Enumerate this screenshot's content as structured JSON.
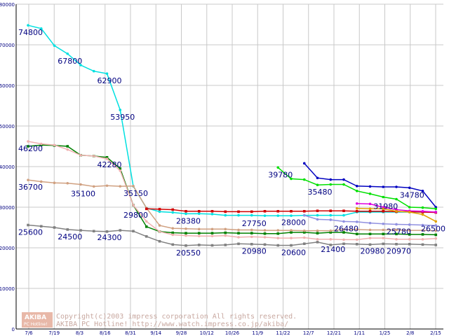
{
  "chart_data": {
    "type": "line",
    "title": "",
    "xlabel": "",
    "ylabel": "",
    "ylim": [
      0,
      80000
    ],
    "y_ticks": [
      0,
      10000,
      20000,
      30000,
      40000,
      50000,
      60000,
      70000,
      80000
    ],
    "x_tick_labels": [
      "7/6",
      "7/19",
      "8/3",
      "8/16",
      "8/31",
      "9/14",
      "9/28",
      "10/12",
      "10/26",
      "11/9",
      "11/22",
      "12/7",
      "12/21",
      "1/11",
      "1/25",
      "2/8",
      "2/15"
    ],
    "grid": true,
    "legend": "none",
    "series": [
      {
        "color": "#00e0e0",
        "marker": "dot",
        "values": [
          [
            0,
            74800
          ],
          [
            1,
            74000
          ],
          [
            2,
            69800
          ],
          [
            3,
            67800
          ],
          [
            4,
            65000
          ],
          [
            5,
            63500
          ],
          [
            6,
            62900
          ],
          [
            7,
            53950
          ],
          [
            8,
            35150
          ],
          [
            9,
            29800
          ],
          [
            10,
            28900
          ],
          [
            11,
            28700
          ],
          [
            12,
            28380
          ],
          [
            13,
            28400
          ],
          [
            14,
            28300
          ],
          [
            15,
            28000
          ],
          [
            16,
            28000
          ],
          [
            17,
            28000
          ],
          [
            18,
            27900
          ],
          [
            19,
            27900
          ],
          [
            20,
            27900
          ],
          [
            21,
            28000
          ],
          [
            22,
            28000
          ],
          [
            23,
            28000
          ],
          [
            24,
            28000
          ],
          [
            25,
            28800
          ],
          [
            26,
            28800
          ],
          [
            27,
            28800
          ],
          [
            28,
            28800
          ],
          [
            29,
            28800
          ],
          [
            30,
            28800
          ],
          [
            31,
            28800
          ]
        ]
      },
      {
        "color": "#008000",
        "marker": "square",
        "values": [
          [
            0,
            45000
          ],
          [
            1,
            45300
          ],
          [
            2,
            45200
          ],
          [
            3,
            45000
          ],
          [
            4,
            42800
          ],
          [
            5,
            42600
          ],
          [
            6,
            42280
          ],
          [
            7,
            39500
          ],
          [
            8,
            30500
          ],
          [
            9,
            25200
          ],
          [
            10,
            24000
          ],
          [
            11,
            23700
          ],
          [
            12,
            23600
          ],
          [
            13,
            23600
          ],
          [
            14,
            23600
          ],
          [
            15,
            23700
          ],
          [
            16,
            23600
          ],
          [
            17,
            23600
          ],
          [
            18,
            23500
          ],
          [
            19,
            23500
          ],
          [
            20,
            23800
          ],
          [
            21,
            23800
          ],
          [
            22,
            23600
          ],
          [
            23,
            23800
          ],
          [
            24,
            23800
          ],
          [
            25,
            23400
          ],
          [
            26,
            23400
          ],
          [
            27,
            23400
          ],
          [
            28,
            23400
          ],
          [
            29,
            23300
          ],
          [
            30,
            23300
          ],
          [
            31,
            23200
          ]
        ]
      },
      {
        "color": "#f0b0b0",
        "marker": "dot",
        "values": [
          [
            0,
            46200
          ],
          [
            1,
            45600
          ],
          [
            2,
            45300
          ],
          [
            3,
            44200
          ],
          [
            4,
            42800
          ],
          [
            5,
            42600
          ],
          [
            6,
            41900
          ],
          [
            7,
            39000
          ],
          [
            8,
            30500
          ],
          [
            9,
            26500
          ],
          [
            10,
            24000
          ],
          [
            11,
            23200
          ],
          [
            12,
            23000
          ],
          [
            13,
            22900
          ],
          [
            14,
            22900
          ],
          [
            15,
            23000
          ],
          [
            16,
            22600
          ],
          [
            17,
            22700
          ],
          [
            18,
            22600
          ],
          [
            19,
            22400
          ],
          [
            20,
            22400
          ],
          [
            21,
            22500
          ],
          [
            22,
            22100
          ],
          [
            23,
            22100
          ],
          [
            24,
            22000
          ],
          [
            25,
            22000
          ],
          [
            26,
            22400
          ],
          [
            27,
            22400
          ],
          [
            28,
            22100
          ],
          [
            29,
            22100
          ],
          [
            30,
            22100
          ],
          [
            31,
            22300
          ]
        ]
      },
      {
        "color": "#d0a080",
        "marker": "dot",
        "values": [
          [
            0,
            36700
          ],
          [
            1,
            36300
          ],
          [
            2,
            36000
          ],
          [
            3,
            35900
          ],
          [
            4,
            35600
          ],
          [
            5,
            35100
          ],
          [
            6,
            35300
          ],
          [
            7,
            35150
          ],
          [
            8,
            35200
          ],
          [
            9,
            29800
          ],
          [
            10,
            25500
          ],
          [
            11,
            24800
          ],
          [
            12,
            24700
          ],
          [
            13,
            24600
          ],
          [
            14,
            24600
          ],
          [
            15,
            24600
          ],
          [
            16,
            24400
          ],
          [
            17,
            24400
          ],
          [
            18,
            24300
          ],
          [
            19,
            24300
          ],
          [
            20,
            24300
          ],
          [
            21,
            24200
          ],
          [
            22,
            24200
          ],
          [
            23,
            24200
          ],
          [
            24,
            24500
          ],
          [
            25,
            24500
          ],
          [
            26,
            24400
          ],
          [
            27,
            24400
          ],
          [
            28,
            24400
          ],
          [
            29,
            24300
          ],
          [
            30,
            24300
          ],
          [
            31,
            24200
          ]
        ]
      },
      {
        "color": "#808080",
        "marker": "square",
        "values": [
          [
            0,
            25600
          ],
          [
            1,
            25300
          ],
          [
            2,
            25000
          ],
          [
            3,
            24500
          ],
          [
            4,
            24300
          ],
          [
            5,
            24100
          ],
          [
            6,
            24000
          ],
          [
            7,
            24300
          ],
          [
            8,
            24100
          ],
          [
            9,
            22800
          ],
          [
            10,
            21600
          ],
          [
            11,
            20800
          ],
          [
            12,
            20550
          ],
          [
            13,
            20700
          ],
          [
            14,
            20600
          ],
          [
            15,
            20700
          ],
          [
            16,
            20980
          ],
          [
            17,
            20900
          ],
          [
            18,
            20800
          ],
          [
            19,
            20600
          ],
          [
            20,
            20600
          ],
          [
            21,
            21000
          ],
          [
            22,
            21400
          ],
          [
            23,
            20700
          ],
          [
            24,
            20980
          ],
          [
            25,
            20900
          ],
          [
            26,
            20800
          ],
          [
            27,
            20970
          ],
          [
            28,
            20900
          ],
          [
            29,
            20900
          ],
          [
            30,
            20800
          ],
          [
            31,
            20700
          ]
        ]
      },
      {
        "color": "#d00000",
        "marker": "square",
        "values": [
          [
            9,
            29600
          ],
          [
            10,
            29500
          ],
          [
            11,
            29400
          ],
          [
            12,
            29000
          ],
          [
            13,
            29000
          ],
          [
            14,
            29000
          ],
          [
            15,
            28900
          ],
          [
            16,
            28900
          ],
          [
            17,
            28900
          ],
          [
            18,
            29000
          ],
          [
            19,
            29000
          ],
          [
            20,
            29000
          ],
          [
            21,
            29000
          ],
          [
            22,
            29100
          ],
          [
            23,
            29100
          ],
          [
            24,
            29100
          ],
          [
            25,
            29000
          ],
          [
            26,
            29000
          ],
          [
            27,
            29000
          ],
          [
            28,
            28900
          ],
          [
            29,
            28900
          ],
          [
            30,
            28800
          ],
          [
            31,
            28700
          ]
        ]
      },
      {
        "color": "#0000c0",
        "marker": "dot",
        "values": [
          [
            21,
            40800
          ],
          [
            22,
            37200
          ],
          [
            23,
            36800
          ],
          [
            24,
            36800
          ],
          [
            25,
            35200
          ],
          [
            26,
            35100
          ],
          [
            27,
            35000
          ],
          [
            28,
            35000
          ],
          [
            29,
            34780
          ],
          [
            30,
            34000
          ],
          [
            31,
            30000
          ]
        ]
      },
      {
        "color": "#00e000",
        "marker": "dot",
        "values": [
          [
            19,
            39780
          ],
          [
            20,
            37000
          ],
          [
            21,
            36800
          ],
          [
            22,
            35480
          ],
          [
            23,
            35600
          ],
          [
            24,
            35600
          ],
          [
            25,
            34000
          ],
          [
            26,
            33300
          ],
          [
            27,
            32500
          ],
          [
            28,
            31980
          ],
          [
            29,
            30000
          ],
          [
            30,
            29900
          ],
          [
            31,
            29600
          ]
        ]
      },
      {
        "color": "#e000e0",
        "marker": "dot",
        "values": [
          [
            25,
            30900
          ],
          [
            26,
            30800
          ],
          [
            27,
            30000
          ],
          [
            28,
            29400
          ],
          [
            29,
            29100
          ],
          [
            30,
            29000
          ],
          [
            31,
            28800
          ]
        ]
      },
      {
        "color": "#e0a000",
        "marker": "dot",
        "values": [
          [
            25,
            29700
          ],
          [
            26,
            29600
          ],
          [
            27,
            29600
          ],
          [
            28,
            29000
          ],
          [
            29,
            28800
          ],
          [
            30,
            28200
          ],
          [
            31,
            26500
          ]
        ]
      },
      {
        "color": "#9090e0",
        "marker": "dot",
        "values": [
          [
            21,
            28000
          ],
          [
            22,
            27000
          ],
          [
            23,
            26900
          ],
          [
            24,
            26480
          ],
          [
            25,
            26400
          ],
          [
            26,
            26100
          ],
          [
            27,
            25900
          ],
          [
            28,
            25780
          ],
          [
            29,
            25700
          ],
          [
            30,
            25600
          ],
          [
            31,
            25500
          ]
        ]
      }
    ],
    "data_labels": [
      {
        "x": 0,
        "y": 74800,
        "text": "74800"
      },
      {
        "x": 3,
        "y": 67800,
        "text": "67800"
      },
      {
        "x": 6,
        "y": 62900,
        "text": "62900"
      },
      {
        "x": 7,
        "y": 53950,
        "text": "53950"
      },
      {
        "x": 0,
        "y": 46200,
        "text": "46200"
      },
      {
        "x": 6,
        "y": 42280,
        "text": "42280"
      },
      {
        "x": 0,
        "y": 36700,
        "text": "36700"
      },
      {
        "x": 4,
        "y": 35100,
        "text": "35100"
      },
      {
        "x": 8,
        "y": 35150,
        "text": "35150"
      },
      {
        "x": 8,
        "y": 29800,
        "text": "29800"
      },
      {
        "x": 0,
        "y": 25600,
        "text": "25600"
      },
      {
        "x": 3,
        "y": 24500,
        "text": "24500"
      },
      {
        "x": 6,
        "y": 24300,
        "text": "24300"
      },
      {
        "x": 12,
        "y": 28380,
        "text": "28380"
      },
      {
        "x": 12,
        "y": 20550,
        "text": "20550"
      },
      {
        "x": 17,
        "y": 27750,
        "text": "27750"
      },
      {
        "x": 17,
        "y": 20980,
        "text": "20980"
      },
      {
        "x": 20,
        "y": 28000,
        "text": "28000"
      },
      {
        "x": 20,
        "y": 20600,
        "text": "20600"
      },
      {
        "x": 19,
        "y": 39780,
        "text": "39780"
      },
      {
        "x": 22,
        "y": 35480,
        "text": "35480"
      },
      {
        "x": 23,
        "y": 21400,
        "text": "21400"
      },
      {
        "x": 24,
        "y": 26480,
        "text": "26480"
      },
      {
        "x": 26,
        "y": 20980,
        "text": "20980"
      },
      {
        "x": 27,
        "y": 31980,
        "text": "31980"
      },
      {
        "x": 28,
        "y": 25780,
        "text": "25780"
      },
      {
        "x": 28,
        "y": 20970,
        "text": "20970"
      },
      {
        "x": 29,
        "y": 34780,
        "text": "34780"
      },
      {
        "x": 31,
        "y": 26500,
        "text": "26500"
      }
    ]
  },
  "watermark": {
    "logo_top": "AKIBA",
    "logo_bottom": "PC Hotline!",
    "line1": "Copyright(c)2003 impress corporation All rights reserved.",
    "line2": "AKIBA PC Hotline!  http://www.watch.impress.co.jp/akiba/"
  }
}
